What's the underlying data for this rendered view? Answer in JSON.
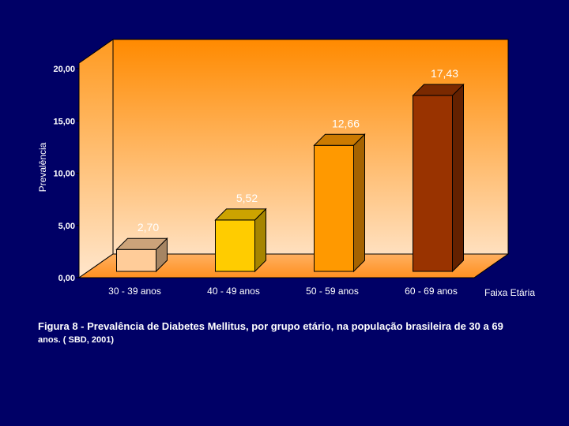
{
  "chart_data": {
    "type": "bar",
    "categories": [
      "30 - 39 anos",
      "40 - 49 anos",
      "50 - 59 anos",
      "60 - 69 anos"
    ],
    "values": [
      2.7,
      5.52,
      12.66,
      17.43
    ],
    "value_labels": [
      "2,70",
      "5,52",
      "12,66",
      "17,43"
    ],
    "ytick_values": [
      0,
      5,
      10,
      15,
      20
    ],
    "ytick_labels": [
      "0,00",
      "5,00",
      "10,00",
      "15,00",
      "20,00"
    ],
    "ylim": [
      0,
      20
    ],
    "ylabel": "Prevalência",
    "xlabel": "Faixa Etária",
    "grid": false,
    "bar_colors": [
      "#ffcc99",
      "#ffcc00",
      "#ff9900",
      "#993300"
    ],
    "background_colors": [
      "#ff8a00",
      "#ffe0bf"
    ]
  },
  "caption": {
    "line1": "Figura 8 - Prevalência de Diabetes Mellitus, por grupo etário, na população brasileira de 30 a 69",
    "line2": "anos. ( SBD, 2001)"
  },
  "colors": {
    "page_background": "#000066",
    "text": "#ffffff"
  }
}
